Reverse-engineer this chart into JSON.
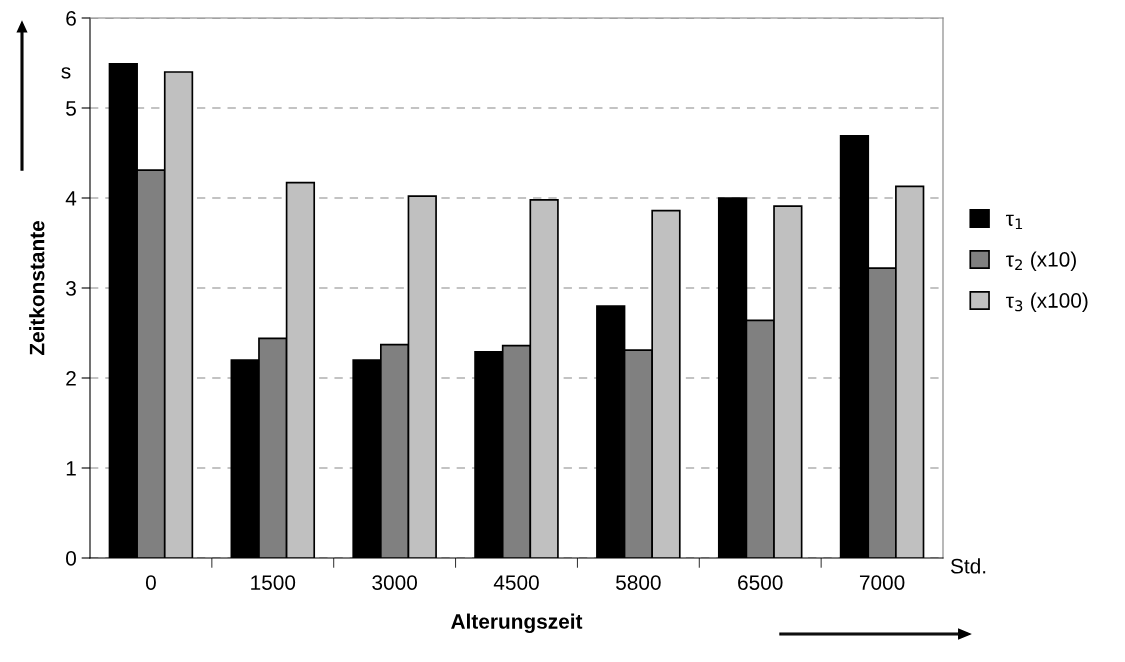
{
  "chart_data": {
    "type": "bar",
    "categories": [
      "0",
      "1500",
      "3000",
      "4500",
      "5800",
      "6500",
      "7000"
    ],
    "series": [
      {
        "name": "τ$_{1}$",
        "color": "#000000",
        "values": [
          5.49,
          2.2,
          2.2,
          2.29,
          2.8,
          4.0,
          4.69
        ]
      },
      {
        "name": "τ$_{2}$ (x10)",
        "color": "#808080",
        "values": [
          4.31,
          2.44,
          2.37,
          2.36,
          2.31,
          2.64,
          3.22
        ]
      },
      {
        "name": "τ$_{3}$ (x100)",
        "color": "#c0c0c0",
        "values": [
          5.4,
          4.17,
          4.02,
          3.98,
          3.86,
          3.91,
          4.13
        ]
      }
    ],
    "xlabel": "Alterungszeit",
    "ylabel": "Zeitkonstante",
    "annotations": [
      "s",
      "Std."
    ],
    "ylim": [
      0,
      6
    ],
    "yticks": [
      0,
      1,
      2,
      3,
      4,
      5,
      6
    ],
    "grid": "y",
    "legend": "right"
  }
}
